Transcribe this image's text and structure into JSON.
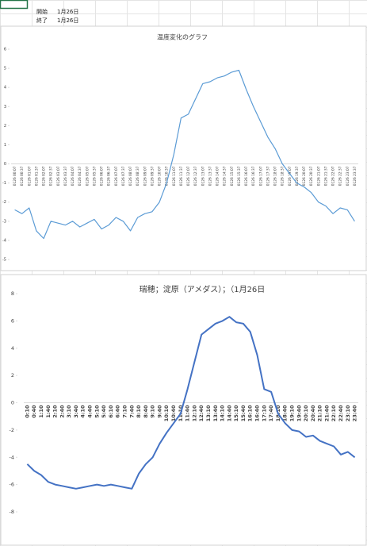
{
  "cells": [
    [
      "開始",
      "1月26日"
    ],
    [
      "終了",
      "1月26日"
    ]
  ],
  "chart_data": [
    {
      "type": "line",
      "title": "温度変化のグラフ",
      "color": "#5b9bd5",
      "categories": [
        "0126 00:07",
        "0126 00:37",
        "0126 01:07",
        "0126 01:37",
        "0126 02:07",
        "0126 02:37",
        "0126 03:07",
        "0126 03:37",
        "0126 04:07",
        "0126 04:37",
        "0126 05:07",
        "0126 05:37",
        "0126 06:07",
        "0126 06:37",
        "0126 07:07",
        "0126 07:37",
        "0126 08:07",
        "0126 08:37",
        "0126 09:07",
        "0126 09:37",
        "0126 10:07",
        "0126 10:37",
        "0126 11:07",
        "0126 11:37",
        "0126 12:07",
        "0126 12:37",
        "0126 13:07",
        "0126 13:37",
        "0126 14:07",
        "0126 14:37",
        "0126 15:07",
        "0126 15:37",
        "0126 16:07",
        "0126 16:37",
        "0126 17:07",
        "0126 17:37",
        "0126 18:07",
        "0126 18:37",
        "0126 19:07",
        "0126 19:37",
        "0126 20:07",
        "0126 20:37",
        "0126 21:07",
        "0126 21:37",
        "0126 22:07",
        "0126 22:37",
        "0126 23:07",
        "0126 23:37"
      ],
      "values": [
        -2.4,
        -2.6,
        -2.3,
        -3.5,
        -3.9,
        -3.0,
        -3.1,
        -3.2,
        -3.0,
        -3.3,
        -3.1,
        -2.9,
        -3.4,
        -3.2,
        -2.8,
        -3.0,
        -3.5,
        -2.8,
        -2.6,
        -2.5,
        -2.0,
        -1.0,
        0.5,
        2.4,
        2.6,
        3.4,
        4.2,
        4.3,
        4.5,
        4.6,
        4.8,
        4.9,
        3.9,
        3.0,
        2.2,
        1.4,
        0.8,
        0.0,
        -0.5,
        -1.0,
        -1.2,
        -1.5,
        -2.0,
        -2.2,
        -2.6,
        -2.3,
        -2.4,
        -3.0
      ],
      "ylim": [
        -5,
        6
      ],
      "yticks": [
        6,
        5,
        4,
        3,
        2,
        1,
        0,
        -1,
        -2,
        -3,
        -4,
        -5
      ]
    },
    {
      "type": "line",
      "title": "瑞穂；淀原（アメダス）；（1月26日",
      "color": "#4472c4",
      "categories": [
        "0:10",
        "0:40",
        "1:10",
        "1:40",
        "2:10",
        "2:40",
        "3:10",
        "3:40",
        "4:10",
        "4:40",
        "5:10",
        "5:40",
        "6:10",
        "6:40",
        "7:10",
        "7:40",
        "8:10",
        "8:40",
        "9:10",
        "9:40",
        "10:10",
        "10:40",
        "11:10",
        "11:40",
        "12:10",
        "12:40",
        "13:10",
        "13:40",
        "14:10",
        "14:40",
        "15:10",
        "15:40",
        "16:10",
        "16:40",
        "17:10",
        "17:40",
        "18:10",
        "18:40",
        "19:10",
        "19:40",
        "20:10",
        "20:40",
        "21:10",
        "21:40",
        "22:10",
        "22:40",
        "23:10",
        "23:40"
      ],
      "values": [
        -4.5,
        -5.0,
        -5.3,
        -5.8,
        -6.0,
        -6.1,
        -6.2,
        -6.3,
        -6.2,
        -6.1,
        -6.0,
        -6.1,
        -6.0,
        -6.1,
        -6.2,
        -6.3,
        -5.2,
        -4.5,
        -4.0,
        -3.0,
        -2.2,
        -1.5,
        -0.8,
        1.0,
        3.0,
        5.0,
        5.4,
        5.8,
        6.0,
        6.3,
        5.9,
        5.8,
        5.2,
        3.5,
        1.0,
        0.8,
        -0.8,
        -1.5,
        -2.0,
        -2.1,
        -2.5,
        -2.4,
        -2.8,
        -3.0,
        -3.2,
        -3.8,
        -3.6,
        -4.0
      ],
      "ylim": [
        -8,
        8
      ],
      "yticks": [
        8,
        6,
        4,
        2,
        0,
        -2,
        -4,
        -6,
        -8
      ]
    }
  ]
}
